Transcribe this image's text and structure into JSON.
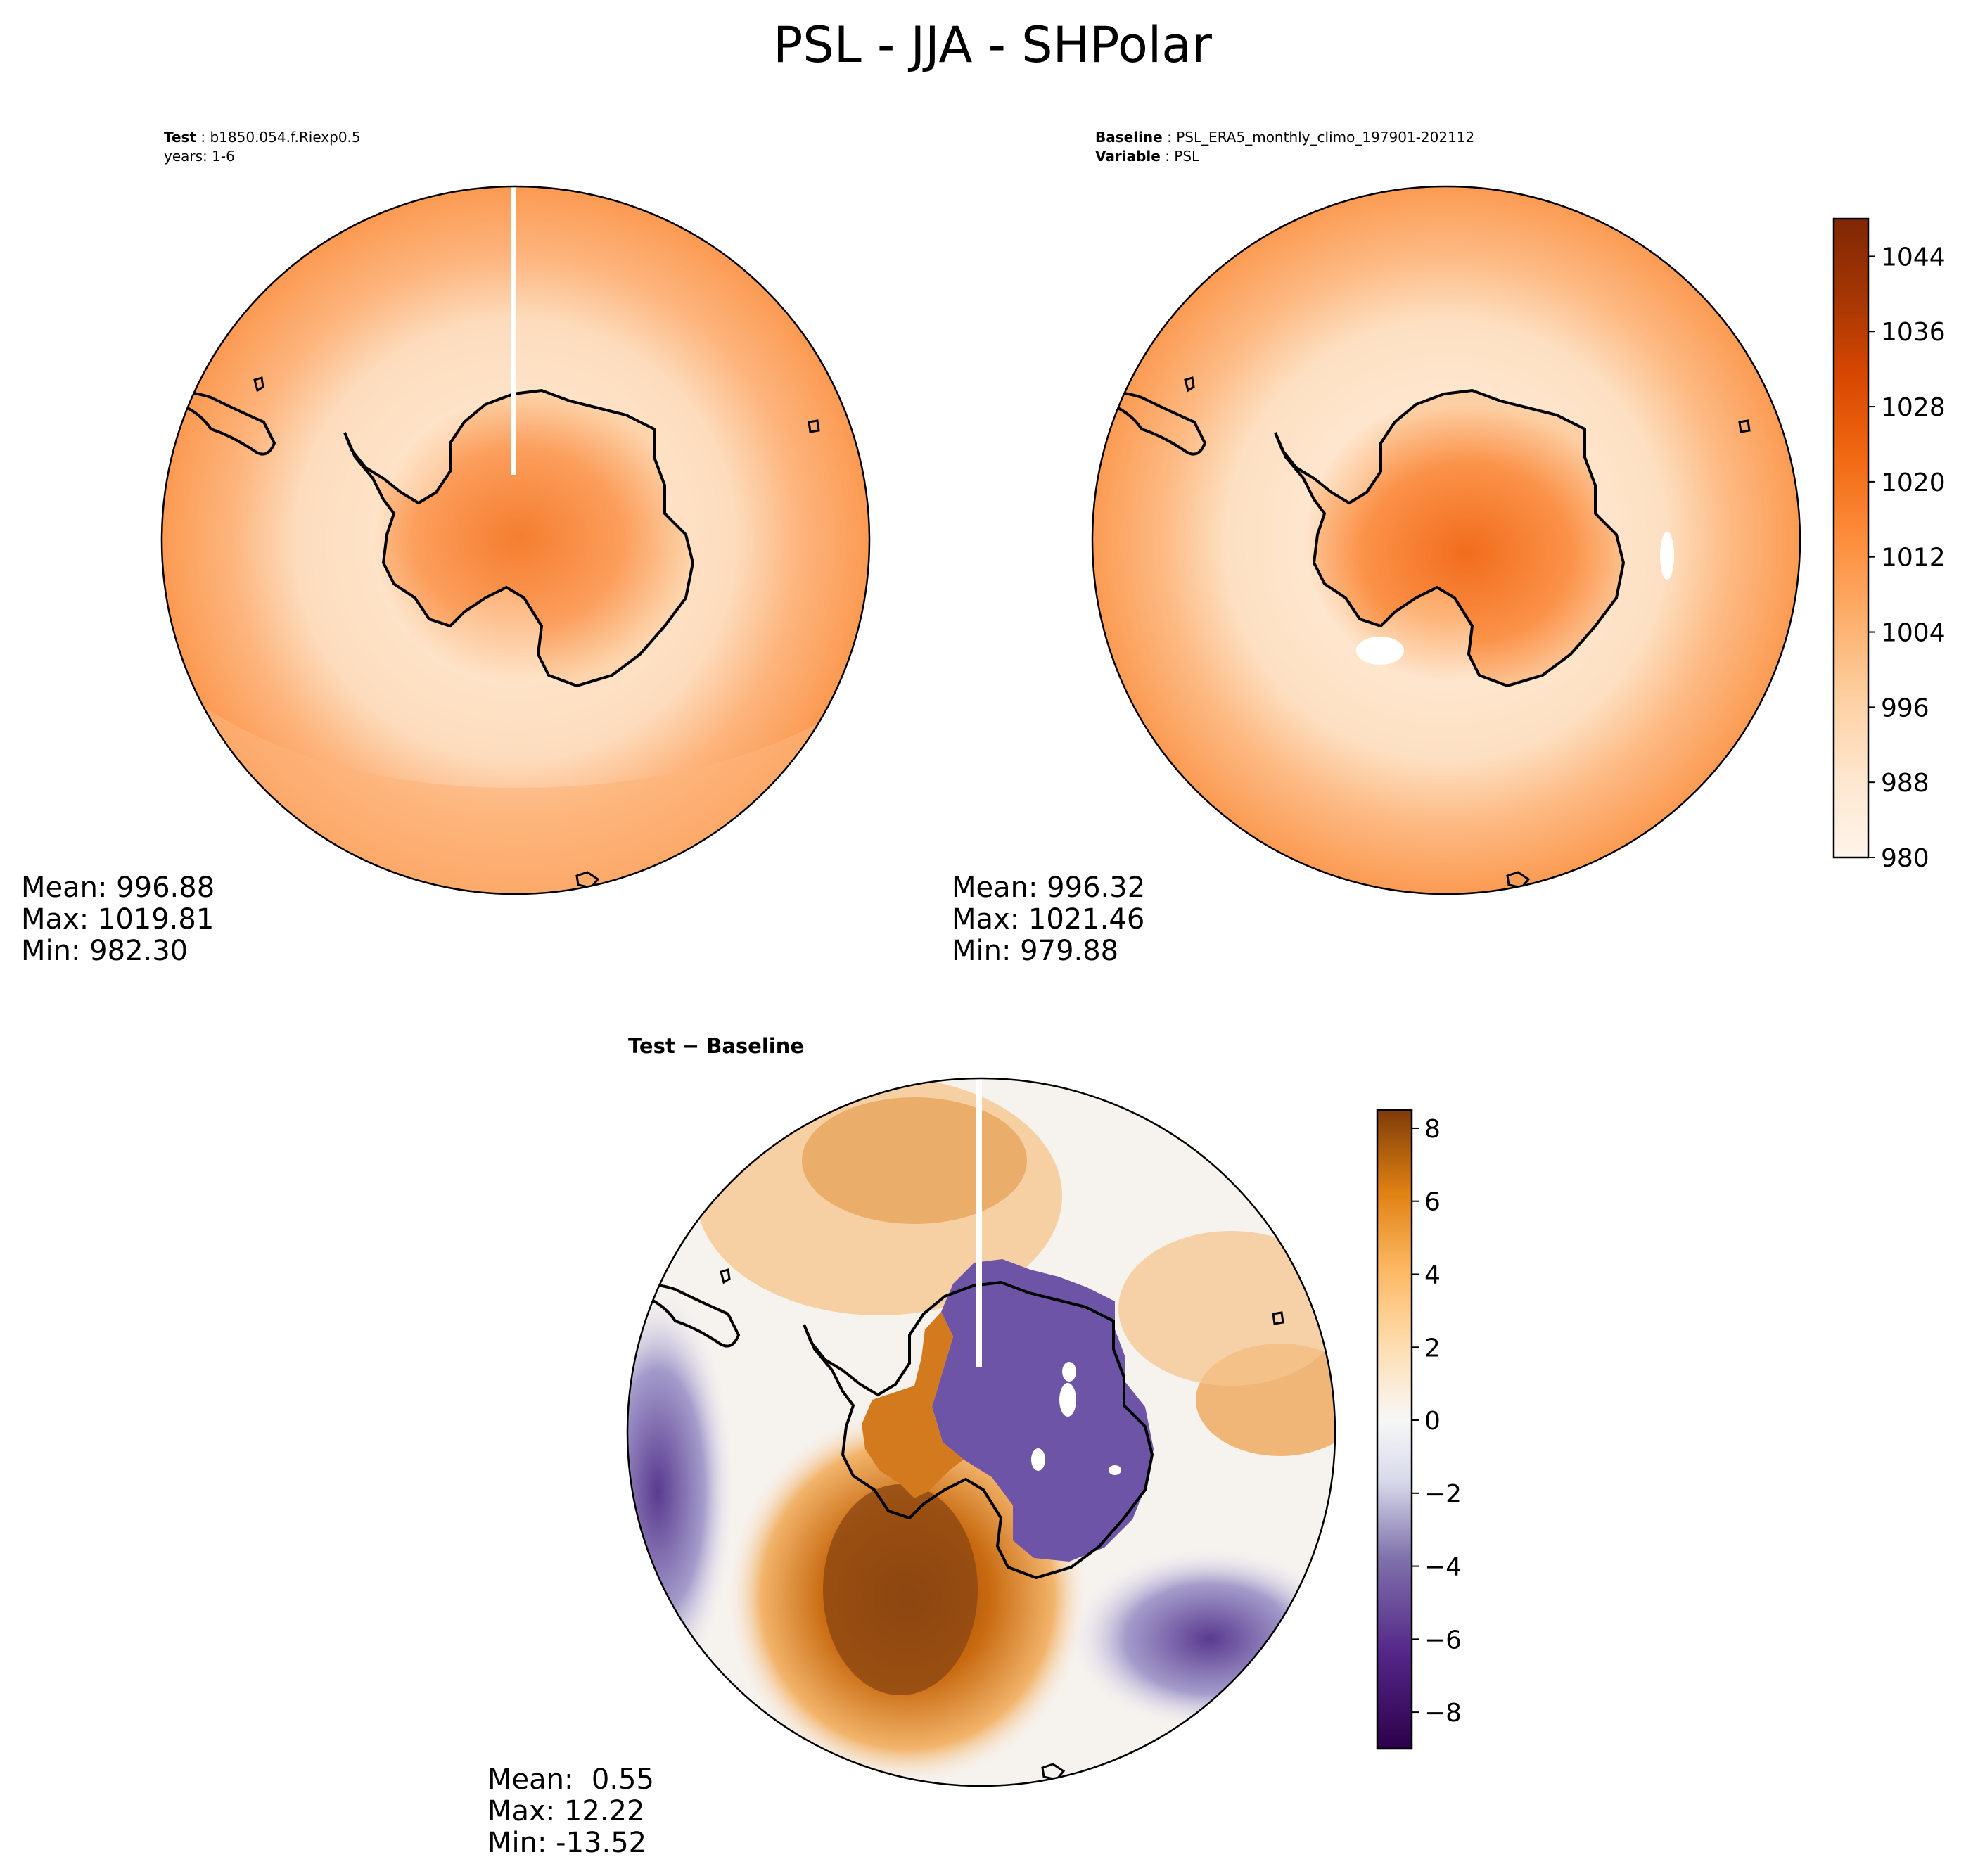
{
  "title": "PSL - JJA - SHPolar",
  "panels": [
    {
      "id": "test",
      "header_label": "Test",
      "header_value": "b1850.054.f.Riexp0.5",
      "header_line2": "years: 1-6",
      "stats": {
        "mean": "Mean: 996.88",
        "max": "Max: 1019.81",
        "min": "Min: 982.30"
      }
    },
    {
      "id": "baseline",
      "header_label": "Baseline",
      "header_value": "PSL_ERA5_monthly_climo_197901-202112",
      "header_label2": "Variable",
      "header_value2": "PSL",
      "stats": {
        "mean": "Mean: 996.32",
        "max": "Max: 1021.46",
        "min": "Min: 979.88"
      }
    },
    {
      "id": "diff",
      "title": "Test − Baseline",
      "stats": {
        "mean": "Mean:  0.55",
        "max": "Max: 12.22",
        "min": "Min: -13.52"
      }
    }
  ],
  "chart_data": [
    {
      "type": "heatmap",
      "title": "Test : b1850.054.f.Riexp0.5",
      "projection": "south-polar-stereographic",
      "variable": "PSL",
      "colormap": "Oranges",
      "colorbar_range": [
        980,
        1048
      ],
      "colorbar_ticks": [
        980,
        988,
        996,
        1004,
        1012,
        1020,
        1028,
        1036,
        1044
      ],
      "mean": 996.88,
      "max": 1019.81,
      "min": 982.3
    },
    {
      "type": "heatmap",
      "title": "Baseline : PSL_ERA5_monthly_climo_197901-202112",
      "projection": "south-polar-stereographic",
      "variable": "PSL",
      "colormap": "Oranges",
      "colorbar_range": [
        980,
        1048
      ],
      "colorbar_ticks": [
        980,
        988,
        996,
        1004,
        1012,
        1020,
        1028,
        1036,
        1044
      ],
      "mean": 996.32,
      "max": 1021.46,
      "min": 979.88
    },
    {
      "type": "heatmap",
      "title": "Test − Baseline",
      "projection": "south-polar-stereographic",
      "variable": "PSL difference",
      "colormap": "PuOr_r",
      "colorbar_range": [
        -9,
        8.5
      ],
      "colorbar_ticks": [
        -8,
        -6,
        -4,
        -2,
        0,
        2,
        4,
        6,
        8
      ],
      "colorbar_tick_labels": [
        "−8",
        "−6",
        "−4",
        "−2",
        "0",
        "2",
        "4",
        "6",
        "8"
      ],
      "mean": 0.55,
      "max": 12.22,
      "min": -13.52
    }
  ],
  "colors": {
    "orange_scale": [
      "#fff5eb",
      "#fee6ce",
      "#fdd0a2",
      "#fdae6b",
      "#fd8d3c",
      "#f16913",
      "#d94801",
      "#a63603",
      "#7f2704"
    ],
    "diff_purple": "#2d004b",
    "diff_orange": "#7f3b08",
    "coast": "#000000"
  }
}
